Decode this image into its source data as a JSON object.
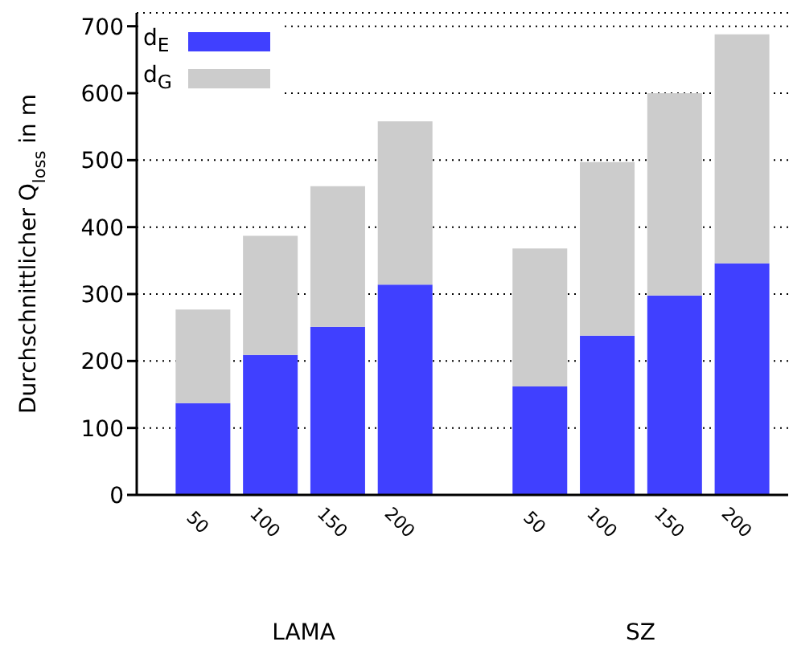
{
  "chart_data": {
    "type": "bar",
    "stacked": true,
    "categories": [
      "50",
      "100",
      "150",
      "200",
      null,
      "50",
      "100",
      "150",
      "200"
    ],
    "series": [
      {
        "name": "d$_{E}$",
        "color": "#4040ff",
        "values": [
          137,
          209,
          251,
          314,
          null,
          162,
          238,
          298,
          346
        ]
      },
      {
        "name": "d$_{G}$",
        "color": "#cccccc",
        "values": [
          140,
          178,
          210,
          244,
          null,
          206,
          259,
          302,
          342
        ]
      }
    ],
    "ylabel": "Durchschnittlicher Q$_{loss}$ in m",
    "ylim": [
      0,
      720
    ],
    "yticks": [
      0,
      100,
      200,
      300,
      400,
      500,
      600,
      700
    ],
    "grid": "y",
    "legend": "top left",
    "annotations": [
      "LAMA",
      "SZ"
    ]
  }
}
